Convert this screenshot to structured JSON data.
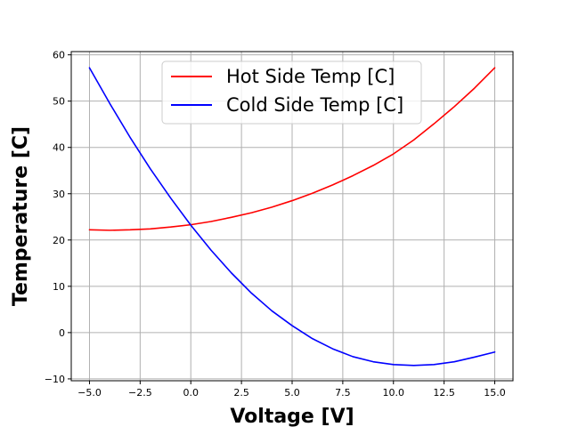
{
  "chart_data": {
    "type": "line",
    "title": "",
    "xlabel": "Voltage [V]",
    "ylabel": "Temperature [C]",
    "xlim": [
      -5.9,
      15.9
    ],
    "ylim": [
      -10.4,
      60.7
    ],
    "xticks": [
      -5.0,
      -2.5,
      0.0,
      2.5,
      5.0,
      7.5,
      10.0,
      12.5,
      15.0
    ],
    "xtick_labels": [
      "−5.0",
      "−2.5",
      "0.0",
      "2.5",
      "5.0",
      "7.5",
      "10.0",
      "12.5",
      "15.0"
    ],
    "yticks": [
      -10,
      0,
      10,
      20,
      30,
      40,
      50,
      60
    ],
    "ytick_labels": [
      "−10",
      "0",
      "10",
      "20",
      "30",
      "40",
      "50",
      "60"
    ],
    "grid": true,
    "legend": "upper center",
    "series": [
      {
        "name": "Hot Side Temp [C]",
        "color": "#ff0000",
        "x": [
          -5,
          -4,
          -3,
          -2,
          -1,
          0,
          1,
          2,
          3,
          4,
          5,
          6,
          7,
          8,
          9,
          10,
          11,
          12,
          13,
          14,
          15
        ],
        "y": [
          22.2,
          22.1,
          22.2,
          22.4,
          22.8,
          23.3,
          24.0,
          24.9,
          25.9,
          27.1,
          28.5,
          30.1,
          31.9,
          33.9,
          36.1,
          38.6,
          41.6,
          45.1,
          48.8,
          52.8,
          57.2
        ]
      },
      {
        "name": "Cold Side Temp [C]",
        "color": "#0000ff",
        "x": [
          -5,
          -4,
          -3,
          -2,
          -1,
          0,
          1,
          2,
          3,
          4,
          5,
          6,
          7,
          8,
          9,
          10,
          11,
          12,
          13,
          14,
          15
        ],
        "y": [
          57.2,
          49.5,
          42.2,
          35.4,
          29.1,
          23.2,
          17.8,
          12.9,
          8.5,
          4.7,
          1.5,
          -1.3,
          -3.5,
          -5.2,
          -6.3,
          -6.9,
          -7.1,
          -6.9,
          -6.3,
          -5.3,
          -4.2
        ]
      }
    ]
  }
}
